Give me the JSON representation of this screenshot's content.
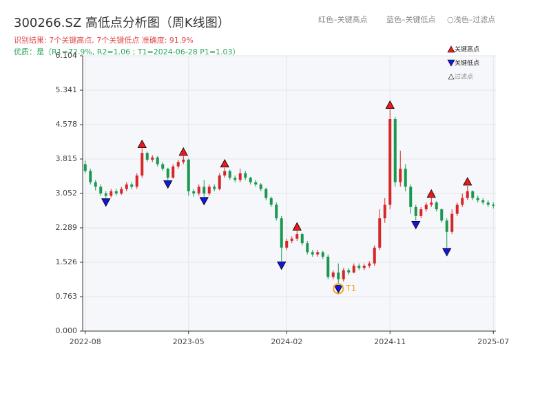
{
  "chart_data": {
    "type": "candlestick",
    "title": "300266.SZ 高低点分析图（周K线图）",
    "subtitle": "识别结果: 7个关键高点, 7个关键低点  准确度: 91.9%",
    "subtitle2": "优质：是（R1=72.9%, R2=1.06 ; T1=2024-06-28 P1=1.03）",
    "top_legend": [
      "红色–关键高点",
      "蓝色–关键低点",
      "○浅色–过滤点"
    ],
    "up_color": "#d62728",
    "down_color": "#1a9850",
    "categories": [
      "2022-08",
      null,
      null,
      null,
      null,
      null,
      null,
      null,
      null,
      null,
      null,
      null,
      null,
      null,
      null,
      null,
      null,
      null,
      null,
      null,
      "2023-05",
      null,
      null,
      null,
      null,
      null,
      null,
      null,
      null,
      null,
      null,
      null,
      null,
      null,
      null,
      null,
      null,
      null,
      null,
      "2024-02",
      null,
      null,
      null,
      null,
      null,
      null,
      null,
      null,
      null,
      null,
      null,
      null,
      null,
      null,
      null,
      null,
      null,
      null,
      null,
      "2024-11",
      null,
      null,
      null,
      null,
      null,
      null,
      null,
      null,
      null,
      null,
      null,
      null,
      null,
      null,
      null,
      null,
      null,
      null,
      null,
      "2025-07"
    ],
    "open": [
      3.7,
      3.55,
      3.3,
      3.2,
      3.05,
      3.0,
      3.1,
      3.05,
      3.15,
      3.25,
      3.2,
      3.45,
      3.95,
      3.8,
      3.85,
      3.7,
      3.6,
      3.4,
      3.65,
      3.75,
      3.8,
      3.1,
      3.05,
      3.2,
      3.05,
      3.2,
      3.15,
      3.45,
      3.55,
      3.4,
      3.35,
      3.5,
      3.4,
      3.3,
      3.25,
      3.15,
      2.95,
      2.8,
      2.5,
      1.85,
      2.0,
      2.05,
      2.15,
      1.95,
      1.75,
      1.7,
      1.75,
      1.65,
      1.2,
      1.3,
      1.15,
      1.35,
      1.3,
      1.45,
      1.4,
      1.45,
      1.5,
      1.85,
      2.5,
      2.8,
      4.7,
      3.3,
      3.6,
      3.2,
      2.75,
      2.55,
      2.7,
      2.8,
      2.85,
      2.7,
      2.45,
      2.2,
      2.6,
      2.8,
      2.95,
      3.1,
      2.95,
      2.9,
      2.85,
      2.8
    ],
    "high": [
      3.78,
      3.6,
      3.35,
      3.25,
      3.1,
      3.15,
      3.15,
      3.2,
      3.3,
      3.3,
      3.5,
      4.05,
      3.98,
      3.9,
      3.88,
      3.75,
      3.62,
      3.7,
      3.8,
      3.88,
      3.82,
      3.15,
      3.25,
      3.35,
      3.25,
      3.25,
      3.5,
      3.62,
      3.58,
      3.45,
      3.6,
      3.55,
      3.42,
      3.35,
      3.28,
      3.18,
      2.98,
      2.85,
      2.55,
      2.05,
      2.1,
      2.22,
      2.18,
      2.0,
      1.8,
      1.8,
      1.78,
      1.7,
      1.35,
      1.5,
      1.4,
      1.4,
      1.5,
      1.5,
      1.5,
      1.55,
      1.9,
      2.7,
      2.95,
      4.92,
      4.75,
      4.0,
      3.7,
      3.25,
      2.8,
      2.75,
      2.85,
      2.95,
      2.88,
      2.72,
      2.5,
      2.7,
      2.85,
      3.05,
      3.22,
      3.12,
      3.0,
      2.95,
      2.9,
      2.85
    ],
    "low": [
      3.5,
      3.25,
      3.12,
      3.0,
      2.95,
      2.96,
      3.0,
      3.02,
      3.1,
      3.15,
      3.15,
      3.4,
      3.75,
      3.75,
      3.65,
      3.55,
      3.35,
      3.38,
      3.6,
      3.7,
      3.0,
      2.98,
      3.0,
      2.98,
      3.0,
      3.1,
      3.12,
      3.4,
      3.35,
      3.3,
      3.3,
      3.35,
      3.25,
      3.2,
      3.1,
      2.9,
      2.75,
      2.45,
      1.55,
      1.8,
      1.95,
      2.0,
      1.9,
      1.7,
      1.65,
      1.65,
      1.6,
      1.15,
      1.15,
      1.03,
      1.1,
      1.25,
      1.28,
      1.35,
      1.35,
      1.4,
      1.45,
      1.8,
      2.4,
      2.7,
      3.2,
      3.2,
      3.1,
      2.6,
      2.45,
      2.5,
      2.65,
      2.75,
      2.65,
      2.4,
      1.85,
      2.15,
      2.55,
      2.75,
      2.9,
      2.9,
      2.85,
      2.8,
      2.75,
      2.72
    ],
    "close": [
      3.55,
      3.3,
      3.2,
      3.05,
      3.0,
      3.1,
      3.05,
      3.15,
      3.25,
      3.2,
      3.45,
      3.95,
      3.8,
      3.85,
      3.7,
      3.6,
      3.4,
      3.65,
      3.75,
      3.8,
      3.1,
      3.05,
      3.2,
      3.05,
      3.2,
      3.15,
      3.45,
      3.55,
      3.4,
      3.35,
      3.5,
      3.4,
      3.3,
      3.25,
      3.15,
      2.95,
      2.8,
      2.5,
      1.85,
      2.0,
      2.05,
      2.15,
      1.95,
      1.75,
      1.7,
      1.75,
      1.65,
      1.2,
      1.3,
      1.15,
      1.35,
      1.3,
      1.45,
      1.4,
      1.45,
      1.5,
      1.85,
      2.5,
      2.8,
      4.7,
      3.3,
      3.6,
      3.2,
      2.75,
      2.55,
      2.7,
      2.8,
      2.85,
      2.7,
      2.45,
      2.2,
      2.6,
      2.8,
      2.95,
      3.1,
      2.95,
      2.9,
      2.85,
      2.8,
      2.78
    ],
    "key_highs": {
      "name": "关键高点",
      "color": "#e8191f",
      "x": [
        11,
        19,
        27,
        41,
        59,
        67,
        74
      ],
      "values": [
        4.05,
        3.88,
        3.62,
        2.22,
        4.92,
        2.95,
        3.22
      ]
    },
    "key_lows": {
      "name": "关键低点",
      "color": "#1515e0",
      "x": [
        4,
        16,
        23,
        38,
        49,
        64,
        70
      ],
      "values": [
        2.95,
        3.35,
        2.98,
        1.55,
        1.03,
        2.45,
        1.85
      ]
    },
    "filtered": {
      "name": "过滤点"
    },
    "annotation": {
      "text": "T1",
      "x": 49,
      "color": "#f5a623"
    },
    "ylim": [
      0,
      6.104
    ],
    "yticks": [
      {
        "value": 0,
        "label": "0.000"
      },
      0.763,
      1.526,
      2.289,
      3.052,
      3.815,
      4.578,
      5.341,
      6.104
    ],
    "grid": true
  }
}
